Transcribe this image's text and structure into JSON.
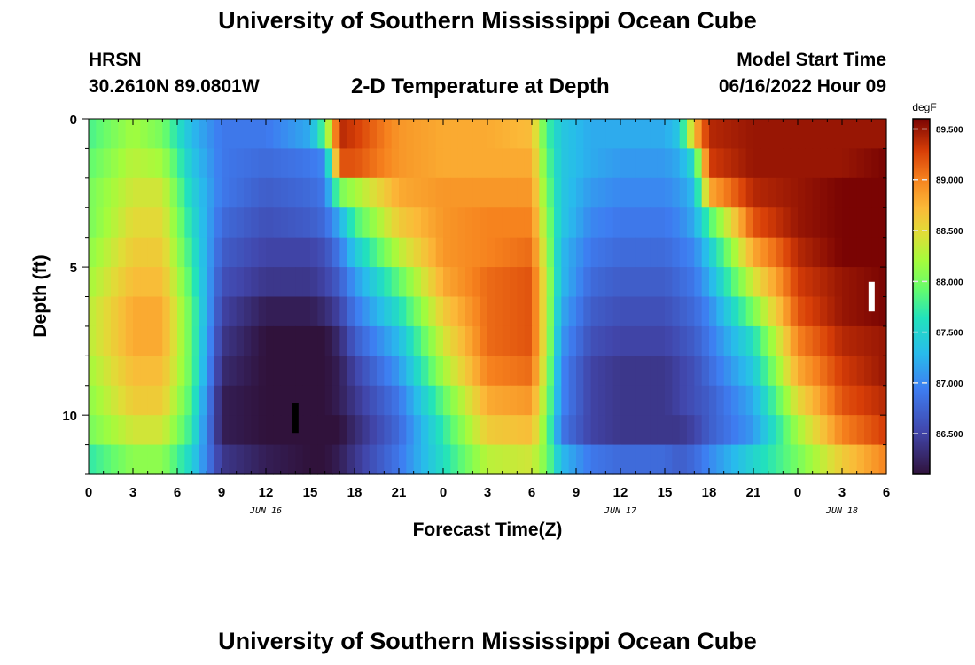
{
  "header": {
    "title": "University of Southern Mississippi Ocean Cube",
    "station": "HRSN",
    "coords": "30.2610N  89.0801W",
    "plot_title": "2-D Temperature at Depth",
    "model_start_label": "Model Start Time",
    "model_start_value": "06/16/2022 Hour 09"
  },
  "footer": {
    "title": "University of Southern Mississippi Ocean Cube"
  },
  "colors": {
    "background": "#ffffff",
    "axis": "#000000",
    "marker_dark": "#000000",
    "marker_light": "#ffffff"
  },
  "chart_data": {
    "type": "heatmap",
    "title": "2-D Temperature at Depth",
    "xlabel": "Forecast Time(Z)",
    "ylabel": "Depth (ft)",
    "x_tick_labels": [
      "0",
      "3",
      "6",
      "9",
      "12",
      "15",
      "18",
      "21",
      "0",
      "3",
      "6",
      "9",
      "12",
      "15",
      "18",
      "21",
      "0",
      "3",
      "6"
    ],
    "x_hours": [
      0,
      3,
      6,
      9,
      12,
      15,
      18,
      21,
      24,
      27,
      30,
      33,
      36,
      39,
      42,
      45,
      48,
      51,
      54
    ],
    "xlim": [
      0,
      54
    ],
    "date_labels": [
      {
        "label": "JUN 16",
        "hour": 12
      },
      {
        "label": "JUN 17",
        "hour": 36
      },
      {
        "label": "JUN 18",
        "hour": 51
      }
    ],
    "y_tick_labels": [
      "0",
      "5",
      "10"
    ],
    "y_ticks": [
      0,
      5,
      10
    ],
    "ylim": [
      0,
      12
    ],
    "y_reversed": true,
    "depth_levels_ft": [
      0,
      1,
      2,
      3,
      4,
      5,
      6,
      7,
      8,
      9,
      10,
      11
    ],
    "time_knots_hours": [
      0,
      3,
      5,
      7,
      9,
      12,
      15,
      16,
      17,
      18,
      21,
      24,
      27,
      30,
      31,
      32,
      34,
      36,
      39,
      40,
      41,
      42,
      45,
      48,
      51,
      54
    ],
    "temperature_degF": [
      [
        87.8,
        88.2,
        88.0,
        87.3,
        86.9,
        86.9,
        87.2,
        87.9,
        89.4,
        89.3,
        88.9,
        88.8,
        88.8,
        88.7,
        87.8,
        87.4,
        87.2,
        87.2,
        87.2,
        87.4,
        88.7,
        89.4,
        89.5,
        89.5,
        89.5,
        89.5
      ],
      [
        87.9,
        88.3,
        88.2,
        87.4,
        86.9,
        86.8,
        86.9,
        87.0,
        89.2,
        89.2,
        88.9,
        88.8,
        88.8,
        88.8,
        87.9,
        87.4,
        87.2,
        87.1,
        87.1,
        87.2,
        87.6,
        89.3,
        89.5,
        89.5,
        89.5,
        89.6
      ],
      [
        88.0,
        88.4,
        88.4,
        87.5,
        86.9,
        86.7,
        86.8,
        86.9,
        88.0,
        88.2,
        88.8,
        88.9,
        88.9,
        88.9,
        88.0,
        87.4,
        87.1,
        87.0,
        87.0,
        87.1,
        87.3,
        88.8,
        89.4,
        89.5,
        89.6,
        89.6
      ],
      [
        88.0,
        88.5,
        88.5,
        87.6,
        86.8,
        86.6,
        86.7,
        86.8,
        87.2,
        87.8,
        88.6,
        88.9,
        89.0,
        89.0,
        88.1,
        87.4,
        87.0,
        86.9,
        86.9,
        87.0,
        87.2,
        87.8,
        89.2,
        89.5,
        89.6,
        89.6
      ],
      [
        88.1,
        88.6,
        88.6,
        87.7,
        86.7,
        86.5,
        86.5,
        86.6,
        86.9,
        87.4,
        88.3,
        88.9,
        89.0,
        89.1,
        88.2,
        87.3,
        86.9,
        86.8,
        86.8,
        86.9,
        87.0,
        87.4,
        88.8,
        89.4,
        89.6,
        89.6
      ],
      [
        88.2,
        88.7,
        88.7,
        87.8,
        86.6,
        86.4,
        86.4,
        86.5,
        86.7,
        87.1,
        87.9,
        88.8,
        89.1,
        89.2,
        88.3,
        87.3,
        86.8,
        86.7,
        86.7,
        86.8,
        86.9,
        87.2,
        88.4,
        89.3,
        89.5,
        89.6
      ],
      [
        88.3,
        88.8,
        88.8,
        87.9,
        86.5,
        86.2,
        86.2,
        86.3,
        86.5,
        86.9,
        87.6,
        88.6,
        89.1,
        89.2,
        88.3,
        87.2,
        86.7,
        86.6,
        86.6,
        86.7,
        86.8,
        87.0,
        88.0,
        89.2,
        89.5,
        89.6
      ],
      [
        88.3,
        88.8,
        88.8,
        87.9,
        86.4,
        86.1,
        86.1,
        86.1,
        86.3,
        86.7,
        87.3,
        88.4,
        89.1,
        89.2,
        88.3,
        87.1,
        86.6,
        86.5,
        86.5,
        86.6,
        86.7,
        86.9,
        87.6,
        89.0,
        89.4,
        89.5
      ],
      [
        88.2,
        88.7,
        88.7,
        87.9,
        86.3,
        86.1,
        86.1,
        86.1,
        86.2,
        86.5,
        87.1,
        88.2,
        89.0,
        89.1,
        88.2,
        87.0,
        86.5,
        86.4,
        86.4,
        86.5,
        86.6,
        86.8,
        87.4,
        88.8,
        89.3,
        89.5
      ],
      [
        88.1,
        88.6,
        88.6,
        87.8,
        86.2,
        86.1,
        86.1,
        86.1,
        86.2,
        86.4,
        86.9,
        87.9,
        88.8,
        88.9,
        88.1,
        87.0,
        86.5,
        86.4,
        86.4,
        86.5,
        86.6,
        86.7,
        87.2,
        88.5,
        89.2,
        89.4
      ],
      [
        88.0,
        88.4,
        88.4,
        87.7,
        86.2,
        86.1,
        86.1,
        86.1,
        86.1,
        86.3,
        86.8,
        87.7,
        88.6,
        88.7,
        88.0,
        86.9,
        86.5,
        86.4,
        86.4,
        86.4,
        86.5,
        86.7,
        87.1,
        88.2,
        89.0,
        89.3
      ],
      [
        87.7,
        88.1,
        88.1,
        87.5,
        86.4,
        86.2,
        86.1,
        86.1,
        86.2,
        86.4,
        86.9,
        87.6,
        88.3,
        88.4,
        88.0,
        87.3,
        86.9,
        86.8,
        86.8,
        86.7,
        86.8,
        87.0,
        87.5,
        88.0,
        88.6,
        89.0
      ]
    ],
    "colorbar": {
      "unit": "degF",
      "vmin": 86.1,
      "vmax": 89.6,
      "ticks": [
        86.5,
        87.0,
        87.5,
        88.0,
        88.5,
        89.0,
        89.5
      ],
      "tick_labels": [
        "86.500",
        "87.000",
        "87.500",
        "88.000",
        "88.500",
        "89.000",
        "89.500"
      ]
    },
    "markers": [
      {
        "hour": 14,
        "depth_from": 9.6,
        "depth_to": 10.6,
        "color": "#000000"
      },
      {
        "hour": 53,
        "depth_from": 5.5,
        "depth_to": 6.5,
        "color": "#ffffff"
      }
    ]
  }
}
